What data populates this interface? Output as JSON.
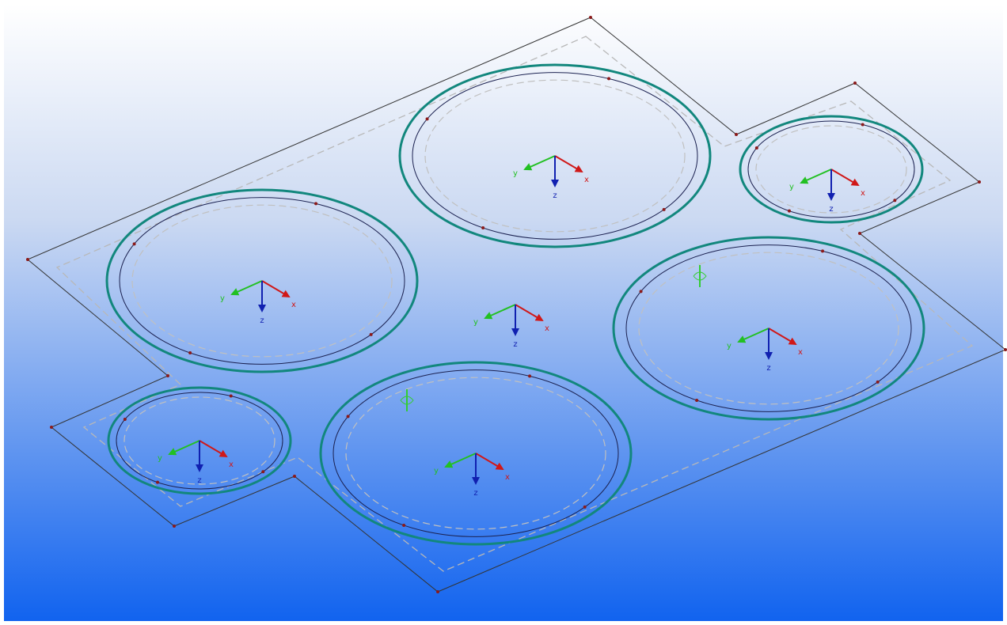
{
  "viewport": {
    "coordinate_systems": [
      {
        "x_label": "x",
        "y_label": "y",
        "z_label": "z"
      },
      {
        "x_label": "x",
        "y_label": "y",
        "z_label": "z"
      },
      {
        "x_label": "x",
        "y_label": "y",
        "z_label": "z"
      },
      {
        "x_label": "x",
        "y_label": "y",
        "z_label": "z"
      },
      {
        "x_label": "x",
        "y_label": "y",
        "z_label": "z"
      },
      {
        "x_label": "x",
        "y_label": "y",
        "z_label": "z"
      },
      {
        "x_label": "x",
        "y_label": "y",
        "z_label": "z"
      }
    ]
  }
}
